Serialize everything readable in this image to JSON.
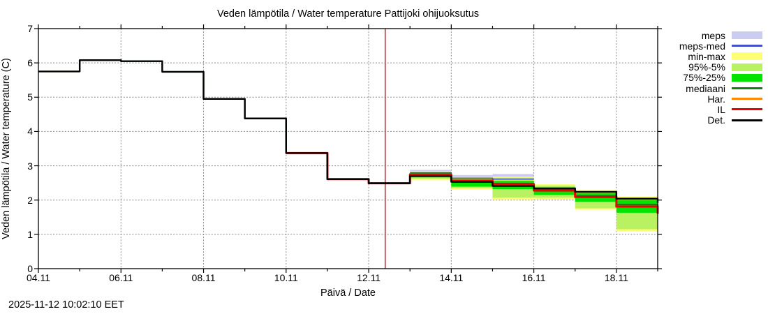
{
  "header": {
    "title": "Veden lämpötila / Water temperature Pattijoki ohijuoksutus"
  },
  "footer": {
    "timestamp": "2025-11-12 10:02:10 EET"
  },
  "chart_data": {
    "type": "line",
    "title": "Veden lämpötila / Water temperature Pattijoki ohijuoksutus",
    "xlabel": "Päivä / Date",
    "ylabel": "Veden lämpötila / Water temperature (C)",
    "x_unit_note": "day offsets measured from 04.11",
    "axes": {
      "y_range": [
        0,
        7
      ],
      "x_range_labels": [
        "04.11",
        "19.11"
      ],
      "y_ticks": [
        0,
        1,
        2,
        3,
        4,
        5,
        6,
        7
      ],
      "y_grid": [
        1,
        2,
        3,
        4,
        5,
        6
      ],
      "x_ticks": [
        {
          "day": 0,
          "label": "04.11"
        },
        {
          "day": 2,
          "label": "06.11"
        },
        {
          "day": 4,
          "label": "08.11"
        },
        {
          "day": 6,
          "label": "10.11"
        },
        {
          "day": 8,
          "label": "12.11"
        },
        {
          "day": 10,
          "label": "14.11"
        },
        {
          "day": 12,
          "label": "16.11"
        },
        {
          "day": 14,
          "label": "18.11"
        }
      ],
      "x_minor": [
        1,
        3,
        5,
        7,
        9,
        11,
        13,
        15
      ]
    },
    "now_line": {
      "day": 8.4,
      "color": "#c62020",
      "label_time": "2025-11-12 10:02:10 EET"
    },
    "bands": [
      {
        "name": "meps",
        "color": "#ccccf2",
        "breaks": [
          9,
          10,
          11,
          12
        ],
        "lo": [
          2.74,
          2.56,
          2.56
        ],
        "hi": [
          2.88,
          2.73,
          2.76
        ]
      },
      {
        "name": "min-max",
        "color": "#ffff73",
        "breaks": [
          9,
          10,
          11,
          12,
          13,
          14,
          15
        ],
        "lo": [
          2.58,
          2.31,
          2.01,
          2.02,
          1.72,
          1.08
        ],
        "hi": [
          2.85,
          2.67,
          2.68,
          2.46,
          2.29,
          2.1
        ]
      },
      {
        "name": "95%-5%",
        "color": "#b8f263",
        "breaks": [
          9,
          10,
          11,
          12,
          13,
          14,
          15
        ],
        "lo": [
          2.62,
          2.35,
          2.07,
          2.07,
          1.76,
          1.15
        ],
        "hi": [
          2.82,
          2.62,
          2.65,
          2.42,
          2.24,
          2.07
        ]
      },
      {
        "name": "75%-25%",
        "color": "#00e400",
        "breaks": [
          9,
          10,
          11,
          12,
          13,
          14,
          15
        ],
        "lo": [
          2.66,
          2.39,
          2.32,
          2.15,
          1.95,
          1.63
        ],
        "hi": [
          2.78,
          2.57,
          2.56,
          2.37,
          2.2,
          2.0
        ]
      }
    ],
    "series": [
      {
        "name": "Har.",
        "color": "#ff8800",
        "width": 2,
        "breaks": [
          9,
          10,
          11,
          12,
          13,
          14,
          15
        ],
        "values": [
          2.74,
          2.57,
          2.46,
          2.28,
          2.09,
          1.81
        ],
        "edge": 1.6
      },
      {
        "name": "meps-med",
        "color": "#4450c8",
        "width": 1.6,
        "breaks": [
          9,
          10,
          11,
          12
        ],
        "values": [
          2.8,
          2.64,
          2.61
        ],
        "edge": null
      },
      {
        "name": "mediaani",
        "color": "#128012",
        "width": 2.2,
        "breaks": [
          0,
          1,
          2,
          3,
          4,
          5,
          6,
          7,
          8,
          9,
          10,
          11,
          12,
          13,
          14,
          15
        ],
        "values": [
          5.75,
          6.08,
          6.05,
          5.74,
          4.95,
          4.38,
          3.37,
          2.61,
          2.49,
          2.76,
          2.55,
          2.48,
          2.3,
          2.12,
          1.87
        ],
        "edge": 1.7
      },
      {
        "name": "IL",
        "color": "#ee0000",
        "width": 3,
        "breaks": [
          6,
          7,
          8,
          9,
          10,
          11,
          12,
          13,
          14,
          15
        ],
        "values": [
          3.37,
          2.61,
          2.49,
          2.74,
          2.57,
          2.46,
          2.28,
          2.09,
          1.81
        ],
        "edge": 1.6
      },
      {
        "name": "Det.",
        "color": "#000000",
        "width": 2.4,
        "breaks": [
          0,
          1,
          2,
          3,
          4,
          5,
          6,
          7,
          8,
          9,
          10,
          11,
          12,
          13,
          14,
          15
        ],
        "values": [
          5.75,
          6.08,
          6.05,
          5.74,
          4.95,
          4.38,
          3.37,
          2.61,
          2.49,
          2.7,
          2.53,
          2.41,
          2.34,
          2.24,
          2.04
        ],
        "edge": 1.92
      }
    ],
    "legend": {
      "position": "top-right",
      "items": [
        {
          "label": "meps",
          "swatch": "band",
          "color": "#ccccf2"
        },
        {
          "label": "meps-med",
          "swatch": "line",
          "color": "#4450c8"
        },
        {
          "label": "min-max",
          "swatch": "band",
          "color": "#ffff73"
        },
        {
          "label": "95%-5%",
          "swatch": "band",
          "color": "#b8f263"
        },
        {
          "label": "75%-25%",
          "swatch": "band",
          "color": "#00e400"
        },
        {
          "label": "mediaani",
          "swatch": "line",
          "color": "#128012"
        },
        {
          "label": "Har.",
          "swatch": "line",
          "color": "#ff8800"
        },
        {
          "label": "IL",
          "swatch": "line",
          "color": "#ee0000"
        },
        {
          "label": "Det.",
          "swatch": "line",
          "color": "#000000"
        }
      ]
    }
  }
}
